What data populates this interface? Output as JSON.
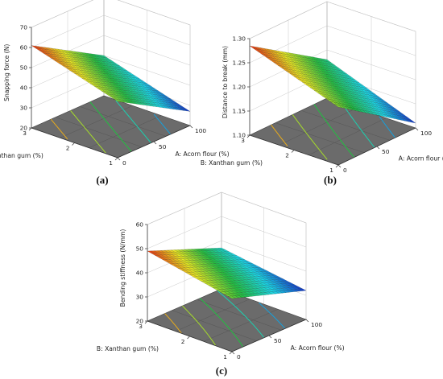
{
  "figure": {
    "panel_labels": [
      "(a)",
      "(b)",
      "(c)"
    ]
  },
  "chart_data": [
    {
      "type": "surface3d",
      "panel": "(a)",
      "xlabel": "A: Acorn flour (%)",
      "ylabel": "B: Xanthan gum (%)",
      "zlabel": "Snapping force (N)",
      "x_ticks": [
        "0",
        "50",
        "100"
      ],
      "y_ticks": [
        "1",
        "2",
        "3"
      ],
      "z_ticks": [
        "20",
        "30",
        "40",
        "50",
        "60",
        "70"
      ],
      "xlim": [
        0,
        100
      ],
      "ylim": [
        1,
        3
      ],
      "zlim": [
        20,
        70
      ],
      "surface": {
        "z_at_A0_B1": 48,
        "z_at_A100_B1": 27,
        "z_at_A0_B3": 61,
        "z_at_A100_B3": 40
      },
      "contour_lines": 5,
      "colormap": [
        "#1030c8",
        "#18d8e8",
        "#20c040",
        "#e8e820",
        "#e83010"
      ]
    },
    {
      "type": "surface3d",
      "panel": "(b)",
      "xlabel": "A: Acorn flour (%)",
      "ylabel": "B: Xanthan gum (%)",
      "zlabel": "Distance to break (mm)",
      "x_ticks": [
        "0",
        "50",
        "100"
      ],
      "y_ticks": [
        "1",
        "2",
        "3"
      ],
      "z_ticks": [
        "1.10",
        "1.15",
        "1.20",
        "1.25",
        "1.30"
      ],
      "xlim": [
        0,
        100
      ],
      "ylim": [
        1,
        3
      ],
      "zlim": [
        1.1,
        1.3
      ],
      "surface": {
        "z_at_A0_B1": 1.22,
        "z_at_A100_B1": 1.11,
        "z_at_A0_B3": 1.285,
        "z_at_A100_B3": 1.18
      },
      "contour_lines": 5,
      "colormap": [
        "#1030c8",
        "#18d8e8",
        "#20c040",
        "#e8e820",
        "#e83010"
      ]
    },
    {
      "type": "surface3d",
      "panel": "(c)",
      "xlabel": "A: Acorn flour (%)",
      "ylabel": "B: Xanthan gum (%)",
      "zlabel": "Bending stiffness (N/mm)",
      "x_ticks": [
        "0",
        "50",
        "100"
      ],
      "y_ticks": [
        "1",
        "2",
        "3"
      ],
      "z_ticks": [
        "20",
        "30",
        "40",
        "50",
        "60"
      ],
      "xlim": [
        0,
        100
      ],
      "ylim": [
        1,
        3
      ],
      "zlim": [
        20,
        60
      ],
      "surface": {
        "z_at_A0_B1": 42,
        "z_at_A100_B1": 32,
        "z_at_A0_B3": 49,
        "z_at_A100_B3": 37
      },
      "contour_lines": 5,
      "colormap": [
        "#1030c8",
        "#18d8e8",
        "#20c040",
        "#e8e820",
        "#e83010"
      ]
    }
  ]
}
